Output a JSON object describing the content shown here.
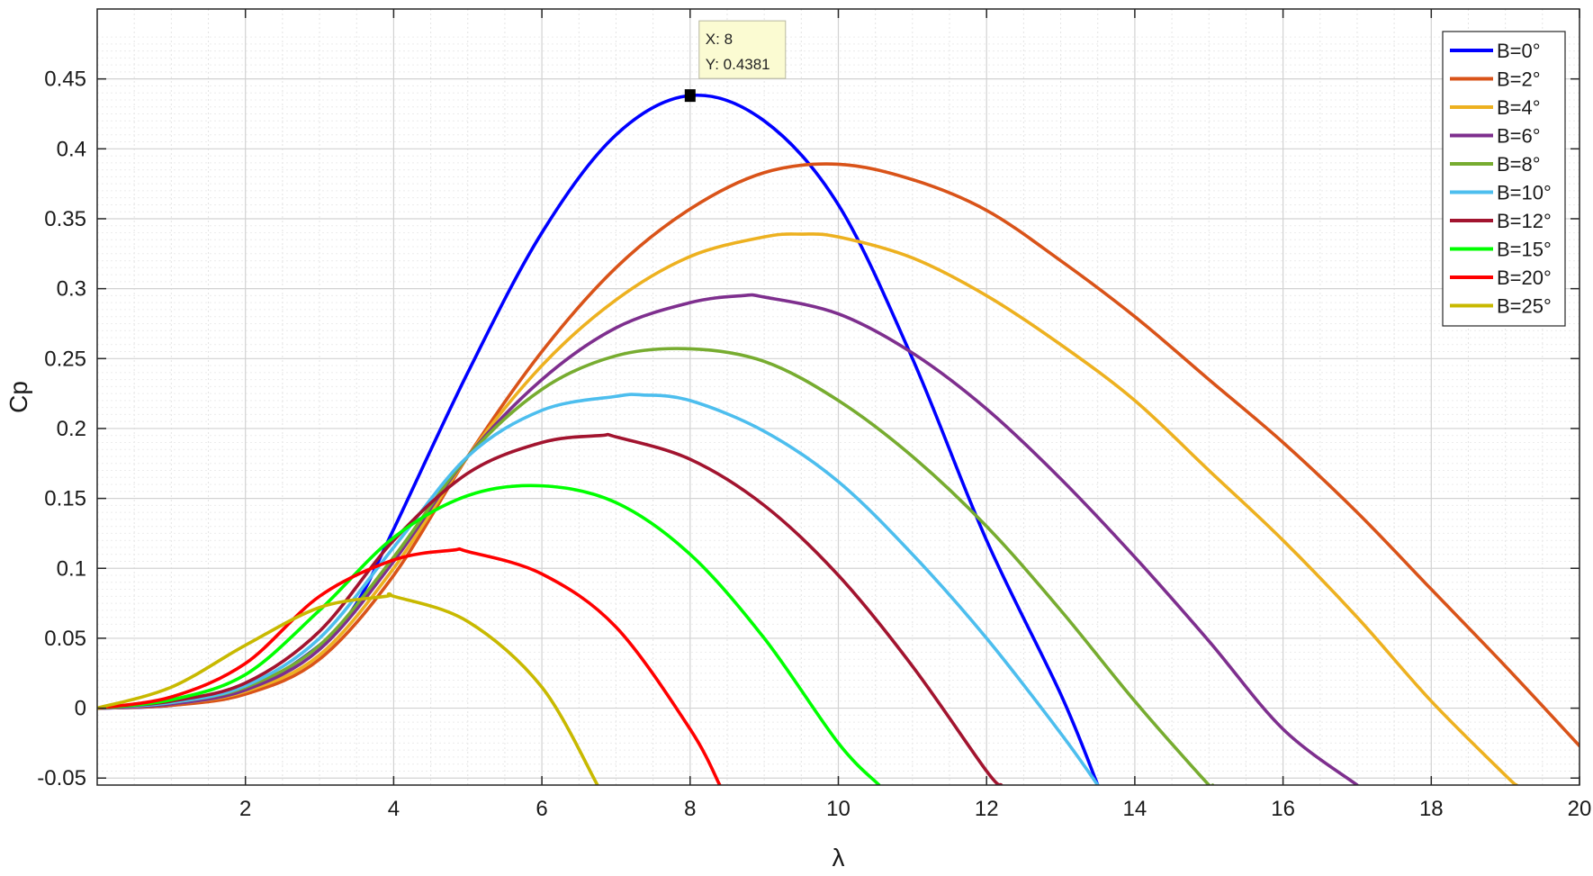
{
  "chart_data": {
    "type": "line",
    "title": "",
    "xlabel": "λ",
    "ylabel": "Cp",
    "xlim": [
      0,
      20
    ],
    "ylim": [
      -0.055,
      0.5
    ],
    "xticks": [
      2,
      4,
      6,
      8,
      10,
      12,
      14,
      16,
      18,
      20
    ],
    "xtick_labels": [
      "2",
      "4",
      "6",
      "8",
      "10",
      "12",
      "14",
      "16",
      "18",
      "20"
    ],
    "yticks": [
      -0.05,
      0,
      0.05,
      0.1,
      0.15,
      0.2,
      0.25,
      0.3,
      0.35,
      0.4,
      0.45
    ],
    "ytick_labels": [
      "-0.05",
      "0",
      "0.05",
      "0.1",
      "0.15",
      "0.2",
      "0.25",
      "0.3",
      "0.35",
      "0.4",
      "0.45"
    ],
    "grid": true,
    "legend_position": "top-right",
    "series": [
      {
        "name": "B=0°",
        "color": "#0000ff",
        "x": [
          0,
          1,
          2,
          3,
          3.5,
          4,
          5,
          6,
          7,
          8,
          9,
          10,
          11,
          12,
          13,
          13.5
        ],
        "y": [
          0,
          0.002,
          0.012,
          0.045,
          0.075,
          0.128,
          0.24,
          0.34,
          0.41,
          0.4381,
          0.42,
          0.36,
          0.25,
          0.12,
          0.01,
          -0.055
        ]
      },
      {
        "name": "B=2°",
        "color": "#d95319",
        "x": [
          0,
          1,
          2,
          3,
          4,
          5,
          6,
          7,
          8,
          9,
          10,
          11,
          12,
          13,
          14,
          15,
          16,
          17,
          18,
          19,
          20
        ],
        "y": [
          0,
          0.002,
          0.01,
          0.035,
          0.095,
          0.18,
          0.255,
          0.315,
          0.357,
          0.383,
          0.389,
          0.378,
          0.356,
          0.32,
          0.28,
          0.235,
          0.19,
          0.14,
          0.085,
          0.03,
          -0.027
        ]
      },
      {
        "name": "B=4°",
        "color": "#edb120",
        "x": [
          0,
          1,
          2,
          3,
          4,
          5,
          6,
          7,
          8,
          9,
          9.5,
          10,
          11,
          12,
          13,
          14,
          15,
          16,
          17,
          18,
          19,
          19.15
        ],
        "y": [
          0,
          0.003,
          0.012,
          0.038,
          0.1,
          0.18,
          0.245,
          0.292,
          0.323,
          0.337,
          0.339,
          0.337,
          0.322,
          0.295,
          0.26,
          0.22,
          0.17,
          0.12,
          0.065,
          0.005,
          -0.048,
          -0.055
        ]
      },
      {
        "name": "B=6°",
        "color": "#7e2f8e",
        "x": [
          0,
          1,
          2,
          3,
          4,
          5,
          6,
          7,
          8,
          8.7,
          9,
          10,
          11,
          12,
          13,
          14,
          15,
          16,
          17
        ],
        "y": [
          0,
          0.003,
          0.013,
          0.042,
          0.105,
          0.18,
          0.235,
          0.272,
          0.29,
          0.295,
          0.294,
          0.282,
          0.254,
          0.214,
          0.164,
          0.108,
          0.048,
          -0.015,
          -0.055
        ]
      },
      {
        "name": "B=8°",
        "color": "#77ac30",
        "x": [
          0,
          1,
          2,
          3,
          4,
          5,
          6,
          7,
          8,
          9,
          10,
          11,
          12,
          13,
          14,
          15,
          15.05
        ],
        "y": [
          0,
          0.004,
          0.015,
          0.045,
          0.108,
          0.18,
          0.228,
          0.252,
          0.257,
          0.248,
          0.22,
          0.18,
          0.13,
          0.07,
          0.005,
          -0.055,
          -0.055
        ]
      },
      {
        "name": "B=10°",
        "color": "#4dbeee",
        "x": [
          0,
          1,
          2,
          3,
          4,
          5,
          6,
          7,
          7.35,
          8,
          9,
          10,
          11,
          12,
          13,
          13.5
        ],
        "y": [
          0,
          0.004,
          0.016,
          0.05,
          0.115,
          0.18,
          0.213,
          0.223,
          0.224,
          0.22,
          0.198,
          0.162,
          0.11,
          0.05,
          -0.018,
          -0.055
        ]
      },
      {
        "name": "B=12°",
        "color": "#a2142f",
        "x": [
          0,
          1,
          2,
          3,
          4,
          5,
          6,
          6.8,
          7,
          8,
          9,
          10,
          11,
          12,
          12.2
        ],
        "y": [
          0,
          0.005,
          0.018,
          0.055,
          0.12,
          0.168,
          0.19,
          0.195,
          0.194,
          0.178,
          0.145,
          0.095,
          0.03,
          -0.045,
          -0.055
        ]
      },
      {
        "name": "B=15°",
        "color": "#00ff00",
        "x": [
          0,
          1,
          2,
          3,
          4,
          5,
          6,
          7,
          8,
          9,
          10,
          10.55
        ],
        "y": [
          0,
          0.006,
          0.024,
          0.07,
          0.122,
          0.152,
          0.159,
          0.147,
          0.11,
          0.05,
          -0.025,
          -0.055
        ]
      },
      {
        "name": "B=20°",
        "color": "#ff0000",
        "x": [
          0,
          1,
          2,
          3,
          4,
          4.8,
          5,
          6,
          7,
          8,
          8.4
        ],
        "y": [
          0,
          0.008,
          0.032,
          0.08,
          0.106,
          0.113,
          0.112,
          0.096,
          0.058,
          -0.015,
          -0.055
        ]
      },
      {
        "name": "B=25°",
        "color": "#c8b900",
        "x": [
          0,
          1,
          2,
          3,
          3.9,
          4,
          5,
          6,
          6.75
        ],
        "y": [
          0,
          0.015,
          0.045,
          0.072,
          0.08,
          0.08,
          0.062,
          0.015,
          -0.055
        ]
      }
    ],
    "annotation": {
      "x_text": "X: 8",
      "y_text": "Y: 0.4381",
      "x": 8,
      "y": 0.4381
    }
  }
}
